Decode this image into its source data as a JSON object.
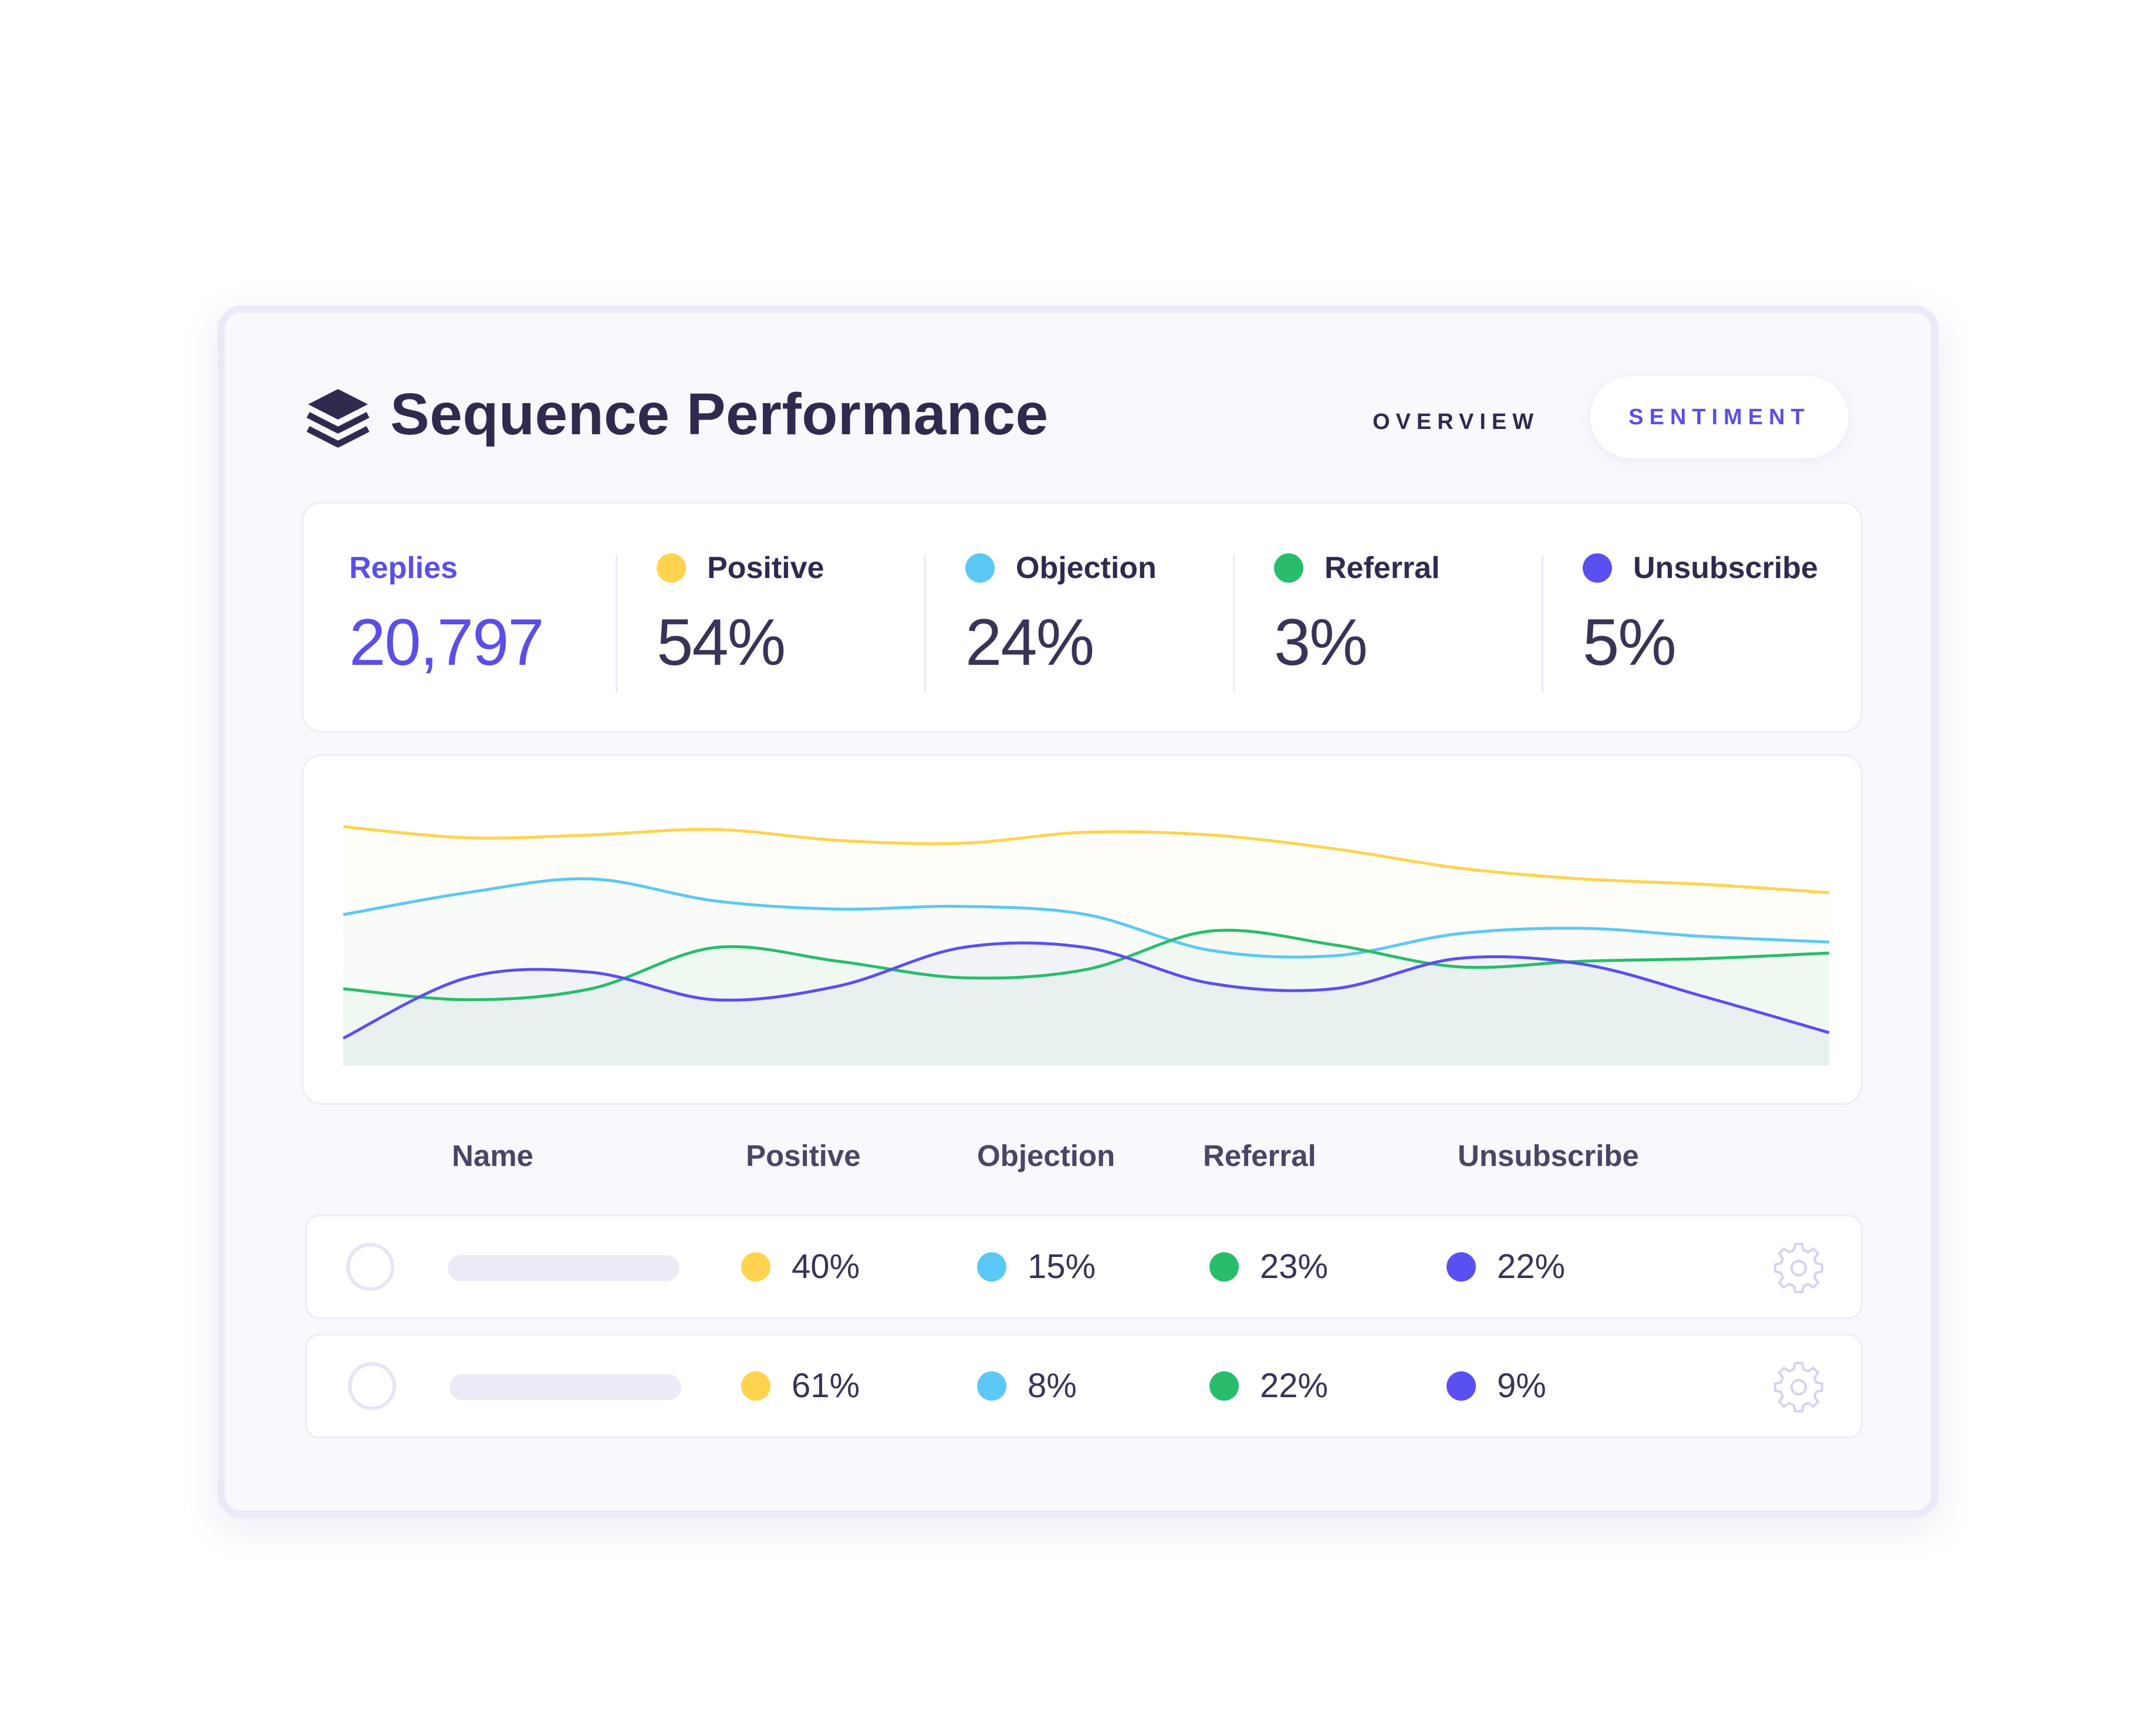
{
  "header": {
    "title": "Sequence Performance",
    "logo_icon": "stacked-layers-icon",
    "tabs": [
      {
        "label": "OVERVIEW",
        "active": false
      },
      {
        "label": "SENTIMENT",
        "active": true
      }
    ]
  },
  "colors": {
    "positive": "#ffd34e",
    "objection": "#5bc8f5",
    "referral": "#27bd6c",
    "unsubscribe": "#5a4ff0",
    "accent": "#5a4fe6"
  },
  "stats": {
    "replies": {
      "label": "Replies",
      "value": "20,797"
    },
    "positive": {
      "label": "Positive",
      "value": "54%"
    },
    "objection": {
      "label": "Objection",
      "value": "24%"
    },
    "referral": {
      "label": "Referral",
      "value": "3%"
    },
    "unsubscribe": {
      "label": "Unsubscribe",
      "value": "5%"
    }
  },
  "chart_data": {
    "type": "area",
    "grid": false,
    "legend": "none",
    "ylim": [
      0,
      100
    ],
    "x": [
      0,
      1,
      2,
      3,
      4,
      5,
      6,
      7,
      8,
      9,
      10,
      11,
      12
    ],
    "series": [
      {
        "key": "positive",
        "values": [
          87,
          83,
          84,
          86,
          82,
          81,
          85,
          84,
          79,
          72,
          68,
          66,
          63
        ]
      },
      {
        "key": "objection",
        "values": [
          55,
          63,
          68,
          60,
          57,
          58,
          55,
          42,
          40,
          48,
          50,
          47,
          45
        ]
      },
      {
        "key": "referral",
        "values": [
          28,
          24,
          28,
          43,
          38,
          32,
          35,
          49,
          44,
          36,
          38,
          39,
          41
        ]
      },
      {
        "key": "unsubscribe",
        "values": [
          10,
          32,
          34,
          24,
          29,
          43,
          43,
          30,
          28,
          39,
          37,
          25,
          12
        ]
      }
    ]
  },
  "table": {
    "headers": [
      "Name",
      "Positive",
      "Objection",
      "Referral",
      "Unsubscribe"
    ],
    "rows": [
      {
        "positive": "40%",
        "objection": "15%",
        "referral": "23%",
        "unsubscribe": "22%"
      },
      {
        "positive": "61%",
        "objection": "8%",
        "referral": "22%",
        "unsubscribe": "9%"
      }
    ],
    "row_icon": "gear-icon"
  }
}
